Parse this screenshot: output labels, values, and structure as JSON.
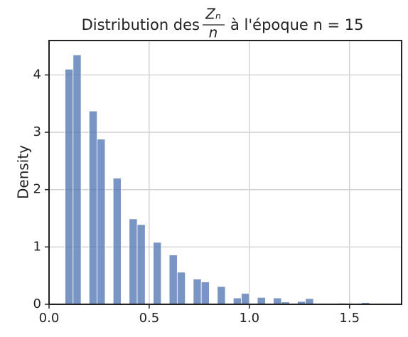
{
  "chart_data": {
    "type": "histogram",
    "title": {
      "prefix": "Distribution des",
      "numerator": "Zₙ",
      "denominator": "n",
      "suffix": "à l'époque n = 15"
    },
    "ylabel": "Density",
    "bins": [
      0.08,
      0.12,
      0.16,
      0.2,
      0.24,
      0.28,
      0.32,
      0.36,
      0.4,
      0.44,
      0.48,
      0.52,
      0.56,
      0.6,
      0.64,
      0.68,
      0.72,
      0.76,
      0.8,
      0.84,
      0.88,
      0.92,
      0.96,
      1.0,
      1.04,
      1.08,
      1.12,
      1.16,
      1.2,
      1.24,
      1.28,
      1.32,
      1.36,
      1.4,
      1.44,
      1.48,
      1.52,
      1.56,
      1.6,
      1.64
    ],
    "values": [
      4.1,
      4.35,
      0,
      3.37,
      2.88,
      0,
      2.2,
      0,
      1.49,
      1.39,
      0,
      1.08,
      0,
      0.86,
      0.56,
      0,
      0.44,
      0.39,
      0,
      0.31,
      0,
      0.11,
      0.19,
      0,
      0.12,
      0,
      0.11,
      0.04,
      0,
      0.05,
      0.1,
      0,
      0,
      0,
      0.02,
      0,
      0,
      0.03,
      0
    ],
    "color": "#4c72b0",
    "xlim": [
      0,
      1.76
    ],
    "ylim": [
      0,
      4.6
    ],
    "xticks": [
      {
        "value": 0,
        "label": "0.0"
      },
      0.5,
      {
        "value": 1,
        "label": "1.0"
      },
      1.5
    ],
    "yticks": [
      0,
      1,
      2,
      3,
      4
    ],
    "grid": true
  }
}
